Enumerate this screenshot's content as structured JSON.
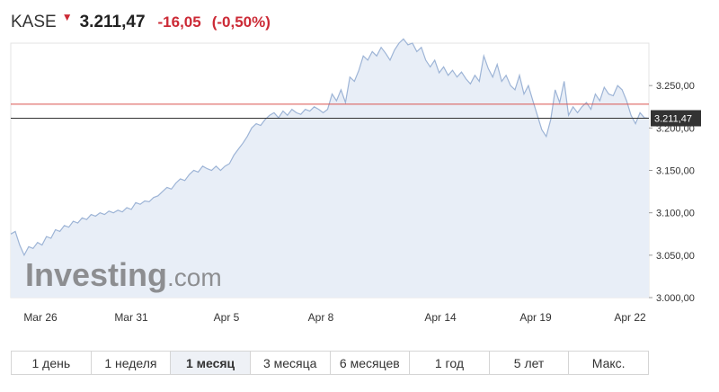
{
  "header": {
    "ticker": "KASE",
    "arrow": "▼",
    "price": "3.211,47",
    "change": "-16,05",
    "change_pct": "(-0,50%)",
    "down_color": "#cc2a36"
  },
  "watermark": {
    "brand": "Investing",
    "suffix": ".com"
  },
  "chart_data": {
    "type": "area",
    "title": "",
    "xlabel": "",
    "ylabel": "",
    "ylim": [
      3000,
      3300
    ],
    "y_ticks": [
      3000,
      3050,
      3100,
      3150,
      3200,
      3250
    ],
    "y_tick_labels": [
      "3.000,00",
      "3.050,00",
      "3.100,00",
      "3.150,00",
      "3.200,00",
      "3.250,00"
    ],
    "x_ticks": [
      "Mar 26",
      "Mar 31",
      "Apr 5",
      "Apr 8",
      "Apr 14",
      "Apr 19",
      "Apr 22"
    ],
    "reference_line": 3228,
    "current_value": 3211.47,
    "current_label": "3.211,47",
    "line_color": "#9db4d6",
    "fill_color": "#e8eef7",
    "reference_color": "#d9534f",
    "current_color": "#333333",
    "series": [
      {
        "values": [
          3075,
          3078,
          3062,
          3050,
          3060,
          3058,
          3065,
          3062,
          3072,
          3070,
          3080,
          3078,
          3085,
          3083,
          3090,
          3088,
          3094,
          3092,
          3098,
          3096,
          3100,
          3098,
          3102,
          3100,
          3103,
          3101,
          3106,
          3104,
          3112,
          3110,
          3114,
          3113,
          3118,
          3120,
          3125,
          3130,
          3128,
          3135,
          3140,
          3138,
          3145,
          3150,
          3148,
          3155,
          3152,
          3150,
          3155,
          3150,
          3155,
          3158,
          3168,
          3175,
          3182,
          3190,
          3200,
          3205,
          3203,
          3210,
          3215,
          3218,
          3212,
          3220,
          3215,
          3222,
          3218,
          3216,
          3222,
          3220,
          3225,
          3222,
          3218,
          3222,
          3240,
          3232,
          3245,
          3230,
          3260,
          3255,
          3268,
          3285,
          3280,
          3290,
          3285,
          3295,
          3288,
          3280,
          3292,
          3300,
          3305,
          3298,
          3300,
          3290,
          3295,
          3280,
          3272,
          3280,
          3265,
          3272,
          3262,
          3268,
          3260,
          3266,
          3258,
          3252,
          3262,
          3255,
          3285,
          3270,
          3260,
          3275,
          3255,
          3262,
          3250,
          3245,
          3262,
          3240,
          3250,
          3232,
          3215,
          3198,
          3190,
          3210,
          3245,
          3230,
          3255,
          3215,
          3225,
          3218,
          3225,
          3230,
          3222,
          3240,
          3232,
          3248,
          3240,
          3238,
          3250,
          3245,
          3232,
          3215,
          3205,
          3218,
          3212,
          3211.47
        ]
      }
    ]
  },
  "tabs": [
    {
      "label": "1 день",
      "active": false
    },
    {
      "label": "1 неделя",
      "active": false
    },
    {
      "label": "1 месяц",
      "active": true
    },
    {
      "label": "3 месяца",
      "active": false
    },
    {
      "label": "6 месяцев",
      "active": false
    },
    {
      "label": "1 год",
      "active": false
    },
    {
      "label": "5 лет",
      "active": false
    },
    {
      "label": "Макс.",
      "active": false
    }
  ]
}
